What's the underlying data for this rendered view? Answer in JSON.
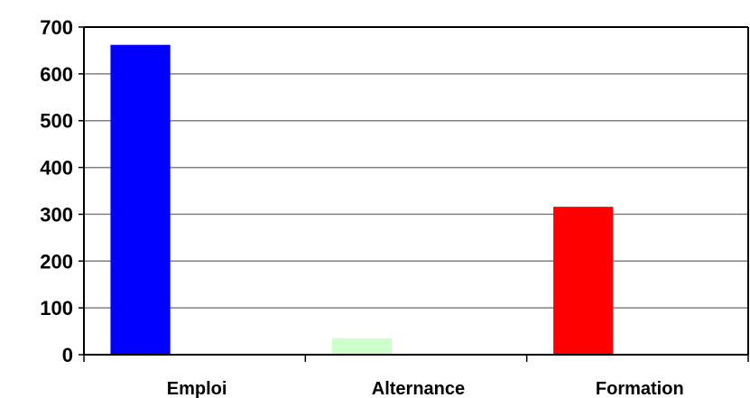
{
  "chart_data": {
    "type": "bar",
    "categories": [
      "Emploi",
      "Alternance",
      "Formation"
    ],
    "values": [
      662,
      35,
      316
    ],
    "bar_colors": [
      "#0000ff",
      "#ccffcc",
      "#ff0000"
    ],
    "ylim": [
      0,
      700
    ],
    "yticks": [
      "0",
      "100",
      "200",
      "300",
      "400",
      "500",
      "600",
      "700"
    ],
    "grid": true,
    "legend": "none",
    "title": "",
    "xlabel": "",
    "ylabel": ""
  }
}
